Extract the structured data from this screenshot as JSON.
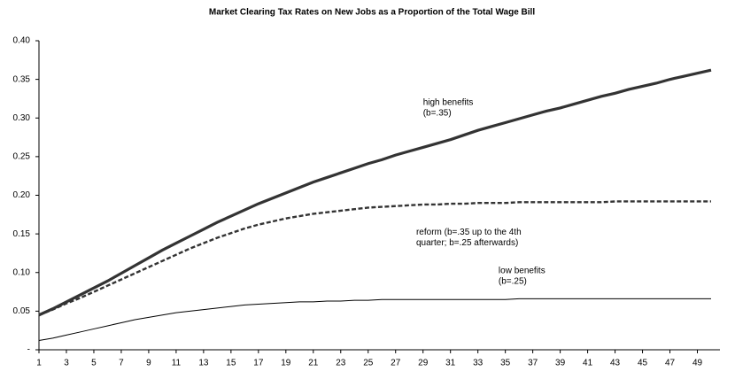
{
  "chart_data": {
    "type": "line",
    "title": "Market Clearing Tax Rates on New Jobs as a Proportion of the Total Wage Bill",
    "x": [
      1,
      2,
      3,
      4,
      5,
      6,
      7,
      8,
      9,
      10,
      11,
      12,
      13,
      14,
      15,
      16,
      17,
      18,
      19,
      20,
      21,
      22,
      23,
      24,
      25,
      26,
      27,
      28,
      29,
      30,
      31,
      32,
      33,
      34,
      35,
      36,
      37,
      38,
      39,
      40,
      41,
      42,
      43,
      44,
      45,
      46,
      47,
      48,
      49,
      50
    ],
    "xlim": [
      1,
      50
    ],
    "xticks": [
      1,
      3,
      5,
      7,
      9,
      11,
      13,
      15,
      17,
      19,
      21,
      23,
      25,
      27,
      29,
      31,
      33,
      35,
      37,
      39,
      41,
      43,
      45,
      47,
      49
    ],
    "ylim": [
      0,
      0.4
    ],
    "yticks": [
      {
        "value": 0,
        "label": "-"
      },
      0.05,
      {
        "value": 0.1,
        "label": "0.10"
      },
      0.15,
      {
        "value": 0.2,
        "label": "0.20"
      },
      0.25,
      {
        "value": 0.3,
        "label": "0.30"
      },
      0.35,
      {
        "value": 0.4,
        "label": "0.40"
      }
    ],
    "series": [
      {
        "color": "#333333",
        "style": "solid-thick",
        "values": [
          0.045,
          0.053,
          0.062,
          0.071,
          0.08,
          0.089,
          0.099,
          0.109,
          0.119,
          0.129,
          0.138,
          0.147,
          0.156,
          0.165,
          0.173,
          0.181,
          0.189,
          0.196,
          0.203,
          0.21,
          0.217,
          0.223,
          0.229,
          0.235,
          0.241,
          0.246,
          0.252,
          0.257,
          0.262,
          0.267,
          0.272,
          0.278,
          0.284,
          0.289,
          0.294,
          0.299,
          0.304,
          0.309,
          0.313,
          0.318,
          0.323,
          0.328,
          0.332,
          0.337,
          0.341,
          0.345,
          0.35,
          0.354,
          0.358,
          0.362
        ]
      },
      {
        "color": "#333333",
        "style": "dashed",
        "values": [
          0.045,
          0.052,
          0.06,
          0.067,
          0.075,
          0.083,
          0.091,
          0.099,
          0.107,
          0.115,
          0.123,
          0.131,
          0.138,
          0.145,
          0.151,
          0.157,
          0.162,
          0.166,
          0.17,
          0.173,
          0.176,
          0.178,
          0.18,
          0.182,
          0.184,
          0.185,
          0.186,
          0.187,
          0.188,
          0.188,
          0.189,
          0.189,
          0.19,
          0.19,
          0.19,
          0.191,
          0.191,
          0.191,
          0.191,
          0.191,
          0.191,
          0.191,
          0.192,
          0.192,
          0.192,
          0.192,
          0.192,
          0.192,
          0.192,
          0.192
        ]
      },
      {
        "color": "#000000",
        "style": "solid-thin",
        "values": [
          0.012,
          0.015,
          0.019,
          0.023,
          0.027,
          0.031,
          0.035,
          0.039,
          0.042,
          0.045,
          0.048,
          0.05,
          0.052,
          0.054,
          0.056,
          0.058,
          0.059,
          0.06,
          0.061,
          0.062,
          0.062,
          0.063,
          0.063,
          0.064,
          0.064,
          0.065,
          0.065,
          0.065,
          0.065,
          0.065,
          0.065,
          0.065,
          0.065,
          0.065,
          0.065,
          0.066,
          0.066,
          0.066,
          0.066,
          0.066,
          0.066,
          0.066,
          0.066,
          0.066,
          0.066,
          0.066,
          0.066,
          0.066,
          0.066,
          0.066
        ]
      }
    ],
    "annotations": [
      {
        "lines": [
          "high benefits",
          "(b=.35)"
        ],
        "x": 29,
        "y": 0.32
      },
      {
        "lines": [
          "reform (b=.35 up to the 4th",
          "quarter; b=.25 afterwards)"
        ],
        "x": 28.5,
        "y": 0.152
      },
      {
        "lines": [
          "low benefits",
          "(b=.25)"
        ],
        "x": 34.5,
        "y": 0.102
      }
    ]
  }
}
